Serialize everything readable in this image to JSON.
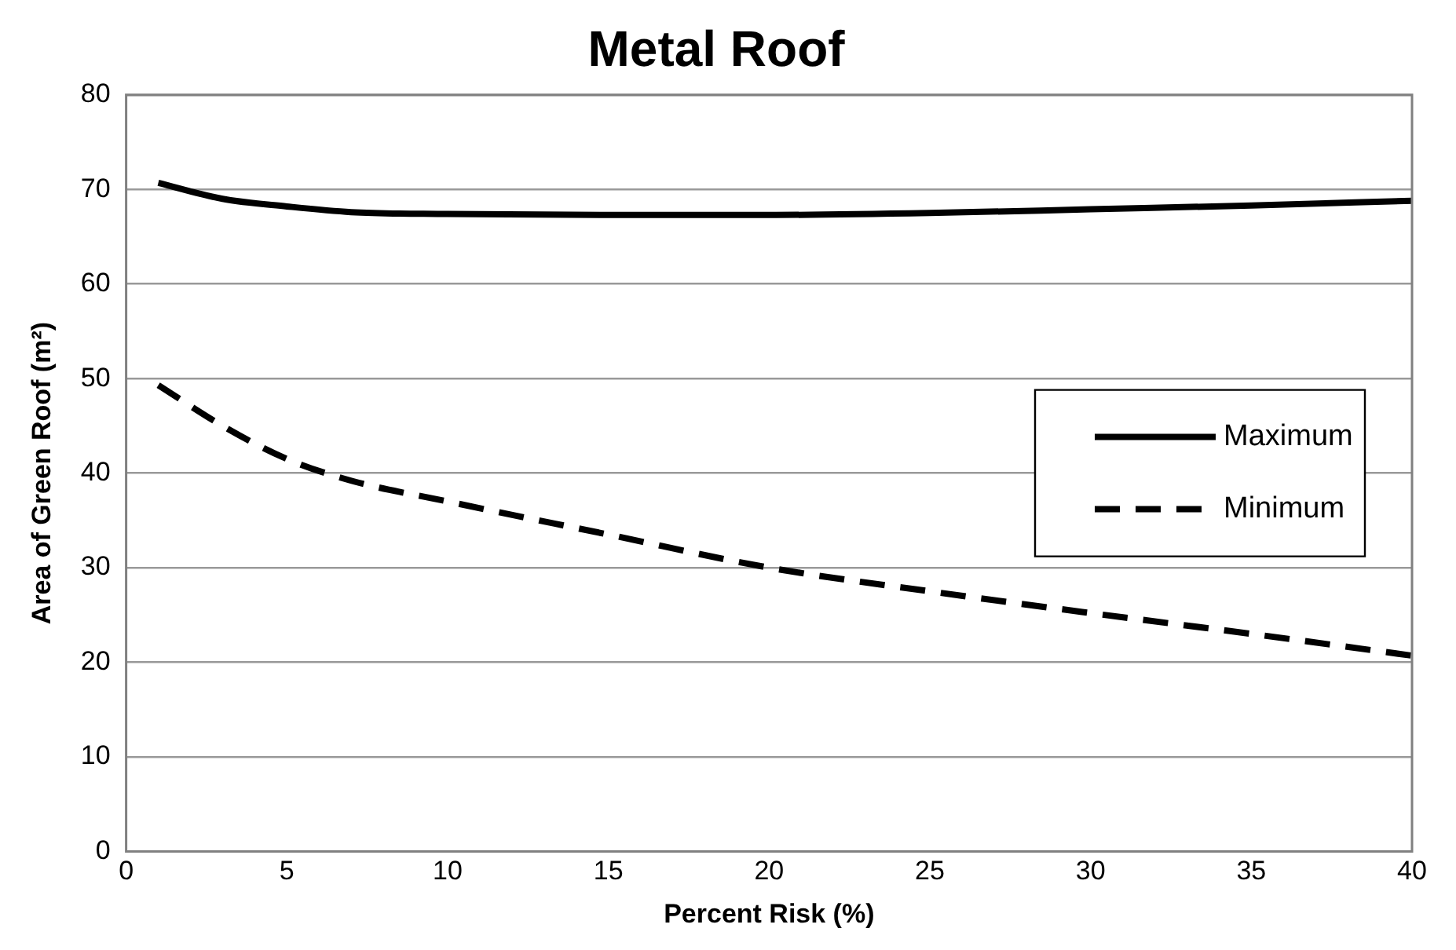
{
  "chart_data": {
    "type": "line",
    "title": "Metal Roof",
    "xlabel": "Percent Risk (%)",
    "ylabel": "Area of Green Roof (m²)",
    "x": [
      1,
      3,
      5,
      7,
      10,
      15,
      20,
      25,
      30,
      35,
      40
    ],
    "series": [
      {
        "name": "Maximum",
        "color": "#000000",
        "line_style": "solid",
        "values": [
          70.7,
          69,
          68.2,
          67.6,
          67.4,
          67.3,
          67.3,
          67.5,
          67.9,
          68.3,
          68.8
        ]
      },
      {
        "name": "Minimum",
        "color": "#000000",
        "line_style": "dashed",
        "values": [
          49.3,
          45,
          41.5,
          39.2,
          37,
          33.5,
          30,
          27.5,
          25.2,
          23,
          20.7
        ]
      }
    ],
    "xlim": [
      0,
      40
    ],
    "xticks": [
      0,
      5,
      10,
      15,
      20,
      25,
      30,
      35,
      40
    ],
    "ylim": [
      0,
      80
    ],
    "yticks": [
      0,
      10,
      20,
      30,
      40,
      50,
      60,
      70,
      80
    ],
    "grid": "y",
    "legend": "right",
    "marker": "none"
  }
}
